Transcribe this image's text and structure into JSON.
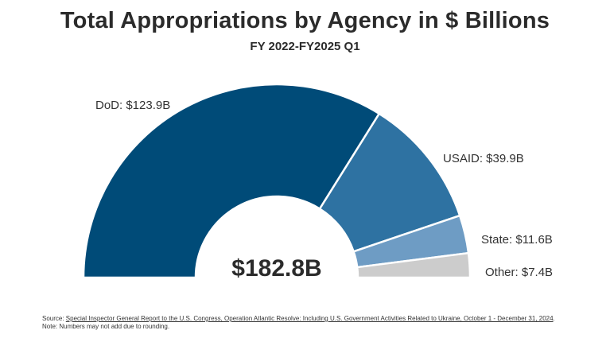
{
  "chart_data": {
    "type": "pie",
    "title": "Total Appropriations by Agency in $ Billions",
    "subtitle": "FY 2022-FY2025 Q1",
    "categories": [
      "DoD",
      "USAID",
      "State",
      "Other"
    ],
    "values": [
      123.9,
      39.9,
      11.6,
      7.4
    ],
    "labels": [
      "DoD: $123.9B",
      "USAID: $39.9B",
      "State: $11.6B",
      "Other: $7.4B"
    ],
    "colors": [
      "#004b78",
      "#2e72a2",
      "#6e9cc4",
      "#cccccc"
    ],
    "center_label": "$182.8B",
    "style": "semicircle-donut"
  },
  "footer": {
    "source_prefix": "Source: ",
    "source_link": "Special Inspector General Report to the U.S. Congress, Operation Atlantic Resolve: Including U.S. Government Activities Related to Ukraine, October 1 - December 31, 2024",
    "source_suffix": ".",
    "note": "Note: Numbers may not add due to rounding."
  }
}
